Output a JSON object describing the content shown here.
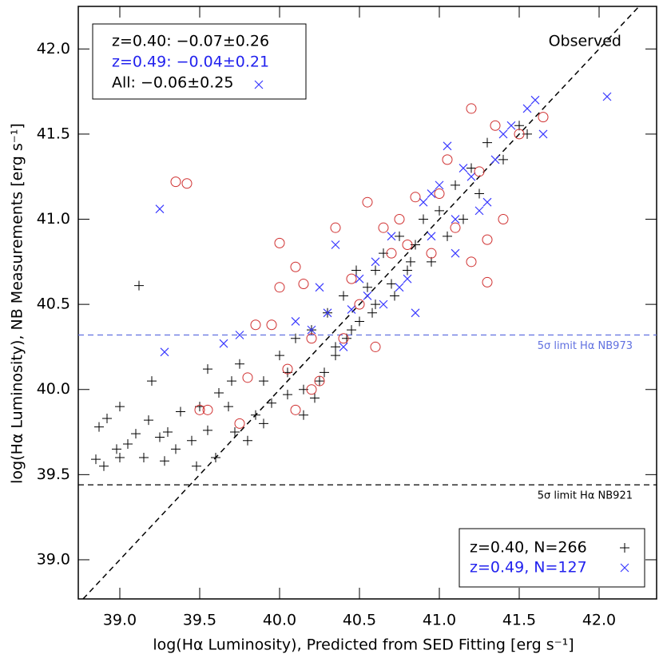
{
  "chart_data": {
    "type": "scatter",
    "x_label": "log(Hα Luminosity), Predicted from SED Fitting [erg s⁻¹]",
    "y_label": "log(Hα Luminosity), NB Measurements [erg s⁻¹]",
    "xlim": [
      38.74,
      42.36
    ],
    "ylim": [
      38.77,
      42.25
    ],
    "xticks": [
      {
        "value": 39,
        "label": "39.0"
      },
      39.5,
      {
        "value": 40,
        "label": "40.0"
      },
      40.5,
      {
        "value": 41,
        "label": "41.0"
      },
      41.5,
      {
        "value": 42,
        "label": "42.0"
      }
    ],
    "yticks": [
      {
        "value": 39,
        "label": "39.0"
      },
      39.5,
      {
        "value": 40,
        "label": "40.0"
      },
      40.5,
      {
        "value": 41,
        "label": "41.0"
      },
      41.5,
      {
        "value": 42,
        "label": "42.0"
      }
    ],
    "one_to_one_line": {
      "label": "Observed",
      "color": "#000000"
    },
    "hlines": [
      {
        "value": 40.32,
        "color": "#6070e0",
        "label": "5σ limit Hα NB973"
      },
      {
        "value": 39.44,
        "color": "#000000",
        "label": "5σ limit Hα NB921"
      }
    ],
    "stats": [
      {
        "text": "z=0.40: −0.07±0.26",
        "color": "#000000"
      },
      {
        "text": "z=0.49: −0.04±0.21",
        "color": "#2222ee"
      },
      {
        "text": "All: −0.06±0.25",
        "color": "#000000"
      }
    ],
    "series": [
      {
        "name": "z=0.40, N=266",
        "marker": "plus",
        "color": "#000000",
        "x": [
          38.87,
          38.92,
          38.85,
          38.9,
          38.98,
          39.0,
          39.05,
          39.1,
          39.15,
          39.18,
          39.2,
          39.25,
          39.28,
          39.35,
          39.38,
          39.45,
          39.48,
          39.55,
          39.6,
          39.62,
          39.68,
          39.72,
          39.75,
          39.8,
          39.85,
          39.12,
          39.9,
          39.95,
          40.0,
          40.05,
          40.1,
          40.15,
          40.2,
          40.22,
          40.28,
          40.3,
          40.35,
          40.4,
          40.42,
          40.48,
          40.5,
          40.55,
          40.6,
          40.65,
          40.7,
          40.75,
          40.8,
          40.85,
          40.9,
          40.95,
          41.0,
          41.05,
          41.1,
          41.15,
          41.2,
          41.25,
          41.3,
          41.4,
          41.5,
          41.55,
          39.0,
          39.3,
          39.5,
          39.7,
          39.55,
          40.6,
          40.72,
          40.82,
          40.58,
          40.35,
          40.15,
          40.05,
          39.9,
          40.25,
          40.45
        ],
        "values": [
          39.78,
          39.83,
          39.59,
          39.55,
          39.65,
          39.6,
          39.68,
          39.74,
          39.6,
          39.82,
          40.05,
          39.72,
          39.58,
          39.65,
          39.87,
          39.7,
          39.55,
          39.76,
          39.6,
          39.98,
          39.9,
          39.75,
          40.15,
          39.7,
          39.85,
          40.61,
          40.05,
          39.92,
          40.2,
          40.1,
          40.3,
          40.0,
          40.35,
          39.95,
          40.1,
          40.45,
          40.25,
          40.55,
          40.3,
          40.7,
          40.4,
          40.6,
          40.5,
          40.8,
          40.62,
          40.9,
          40.7,
          40.85,
          41.0,
          40.75,
          41.05,
          40.9,
          41.2,
          41.0,
          41.3,
          41.15,
          41.45,
          41.35,
          41.55,
          41.5,
          39.9,
          39.75,
          39.9,
          40.05,
          40.12,
          40.7,
          40.55,
          40.75,
          40.45,
          40.2,
          39.85,
          39.97,
          39.8,
          40.05,
          40.35
        ]
      },
      {
        "name": "z=0.49, N=127",
        "marker": "cross",
        "color": "#3a3aff",
        "x": [
          39.25,
          39.28,
          39.65,
          39.75,
          40.1,
          40.2,
          40.3,
          40.35,
          40.45,
          40.5,
          40.55,
          40.6,
          40.7,
          40.75,
          40.85,
          40.9,
          40.95,
          41.0,
          41.05,
          41.1,
          41.15,
          41.2,
          41.25,
          41.3,
          41.35,
          41.4,
          41.45,
          41.55,
          41.6,
          41.65,
          42.05,
          40.65,
          40.8,
          40.95,
          41.1,
          40.4,
          40.25
        ],
        "values": [
          41.06,
          40.22,
          40.27,
          40.32,
          40.4,
          40.35,
          40.45,
          40.85,
          40.47,
          40.65,
          40.55,
          40.75,
          40.9,
          40.6,
          40.45,
          41.1,
          40.9,
          41.2,
          41.43,
          41.0,
          41.3,
          41.25,
          41.05,
          41.1,
          41.35,
          41.5,
          41.55,
          41.65,
          41.7,
          41.5,
          41.72,
          40.5,
          40.65,
          41.15,
          40.8,
          40.25,
          40.6
        ]
      },
      {
        "marker": "circle",
        "color": "#d03030",
        "x": [
          39.35,
          39.42,
          39.5,
          39.55,
          39.8,
          39.85,
          39.95,
          40.0,
          40.0,
          40.05,
          40.1,
          40.1,
          40.15,
          40.2,
          40.25,
          40.2,
          40.35,
          40.4,
          40.45,
          40.5,
          40.55,
          40.6,
          40.65,
          40.7,
          40.75,
          40.8,
          40.85,
          40.95,
          41.0,
          41.05,
          41.1,
          41.2,
          41.25,
          41.3,
          41.3,
          41.35,
          41.4,
          41.5,
          41.65,
          39.75,
          41.2
        ],
        "values": [
          41.22,
          41.21,
          39.88,
          39.88,
          40.07,
          40.38,
          40.38,
          40.86,
          40.6,
          40.12,
          39.88,
          40.72,
          40.62,
          40.0,
          40.05,
          40.3,
          40.95,
          40.3,
          40.65,
          40.5,
          41.1,
          40.25,
          40.95,
          40.8,
          41.0,
          40.85,
          41.13,
          40.8,
          41.15,
          41.35,
          40.95,
          41.65,
          41.28,
          40.63,
          40.88,
          41.55,
          41.0,
          41.5,
          41.6,
          39.8,
          40.75
        ]
      }
    ]
  }
}
